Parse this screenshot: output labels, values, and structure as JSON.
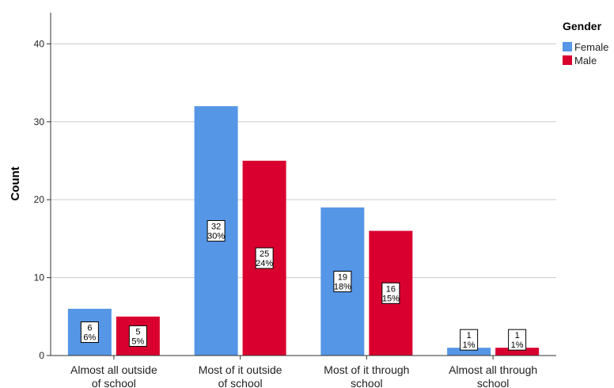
{
  "chart_data": {
    "type": "bar",
    "categories": [
      [
        "Almost all outside",
        "of school"
      ],
      [
        "Most of it outside",
        "of school"
      ],
      [
        "Most of it through",
        "school"
      ],
      [
        "Almost all through",
        "school"
      ]
    ],
    "series": [
      {
        "name": "Female",
        "color": "#5596e6",
        "values": [
          6,
          32,
          19,
          1
        ],
        "percents": [
          "6%",
          "30%",
          "18%",
          "1%"
        ]
      },
      {
        "name": "Male",
        "color": "#d9002f",
        "values": [
          5,
          25,
          16,
          1
        ],
        "percents": [
          "5%",
          "24%",
          "15%",
          "1%"
        ]
      }
    ],
    "ylabel": "Count",
    "ylim": [
      0,
      44
    ],
    "yticks": [
      0,
      10,
      20,
      30,
      40
    ],
    "grid": true,
    "legend": {
      "title": "Gender",
      "placement": "top-right"
    }
  }
}
